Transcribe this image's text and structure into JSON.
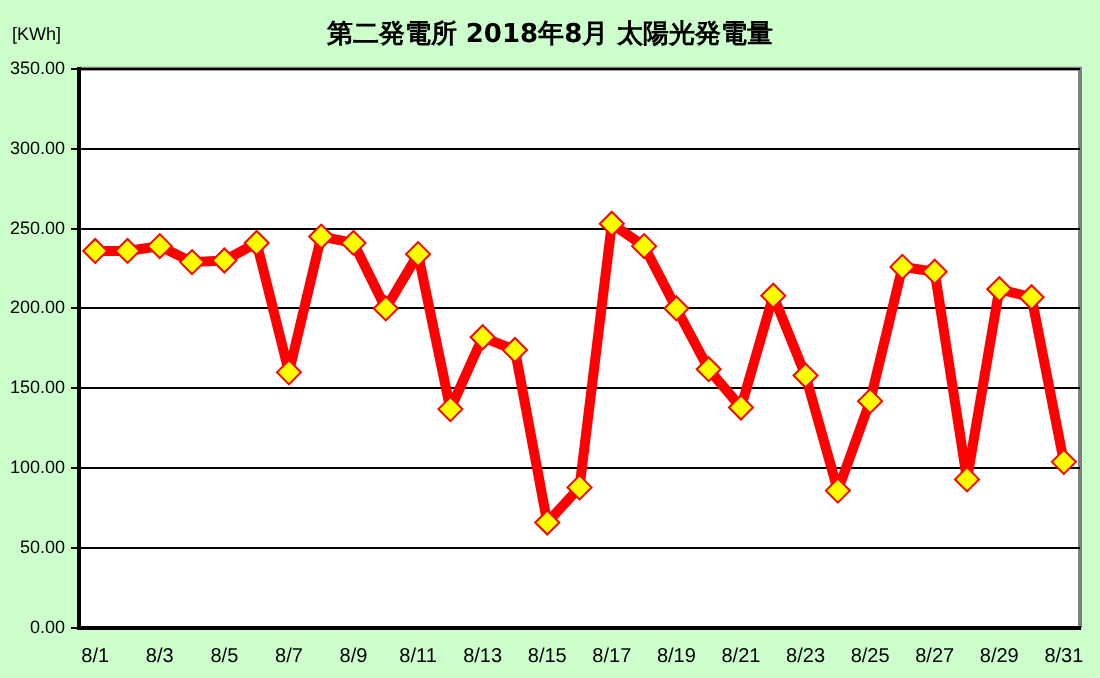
{
  "chart_data": {
    "type": "line",
    "title": "第二発電所  2018年8月 太陽光発電量",
    "ylabel": "[KWh]",
    "categories": [
      "8/1",
      null,
      "8/3",
      null,
      "8/5",
      null,
      "8/7",
      null,
      "8/9",
      null,
      "8/11",
      null,
      "8/13",
      null,
      "8/15",
      null,
      "8/17",
      null,
      "8/19",
      null,
      "8/21",
      null,
      "8/23",
      null,
      "8/25",
      null,
      "8/27",
      null,
      "8/29",
      null,
      "8/31"
    ],
    "series": [
      {
        "color": "#ff0000",
        "values": [
          236,
          236,
          239,
          229,
          230,
          241,
          160,
          245,
          241,
          200,
          234,
          137,
          182,
          174,
          66,
          88,
          253,
          239,
          200,
          162,
          138,
          208,
          158,
          86,
          142,
          226,
          223,
          93,
          212,
          207,
          104
        ]
      }
    ],
    "ylim": [
      0,
      350
    ],
    "yticks": [
      {
        "value": 0,
        "label": "0.00"
      },
      {
        "value": 50,
        "label": "50.00"
      },
      {
        "value": 100,
        "label": "100.00"
      },
      {
        "value": 150,
        "label": "150.00"
      },
      {
        "value": 200,
        "label": "200.00"
      },
      {
        "value": 250,
        "label": "250.00"
      },
      {
        "value": 300,
        "label": "300.00"
      },
      {
        "value": 350,
        "label": "350.00"
      }
    ],
    "grid": "y",
    "legend": false,
    "marker": "diamond",
    "line_style": "solid"
  }
}
